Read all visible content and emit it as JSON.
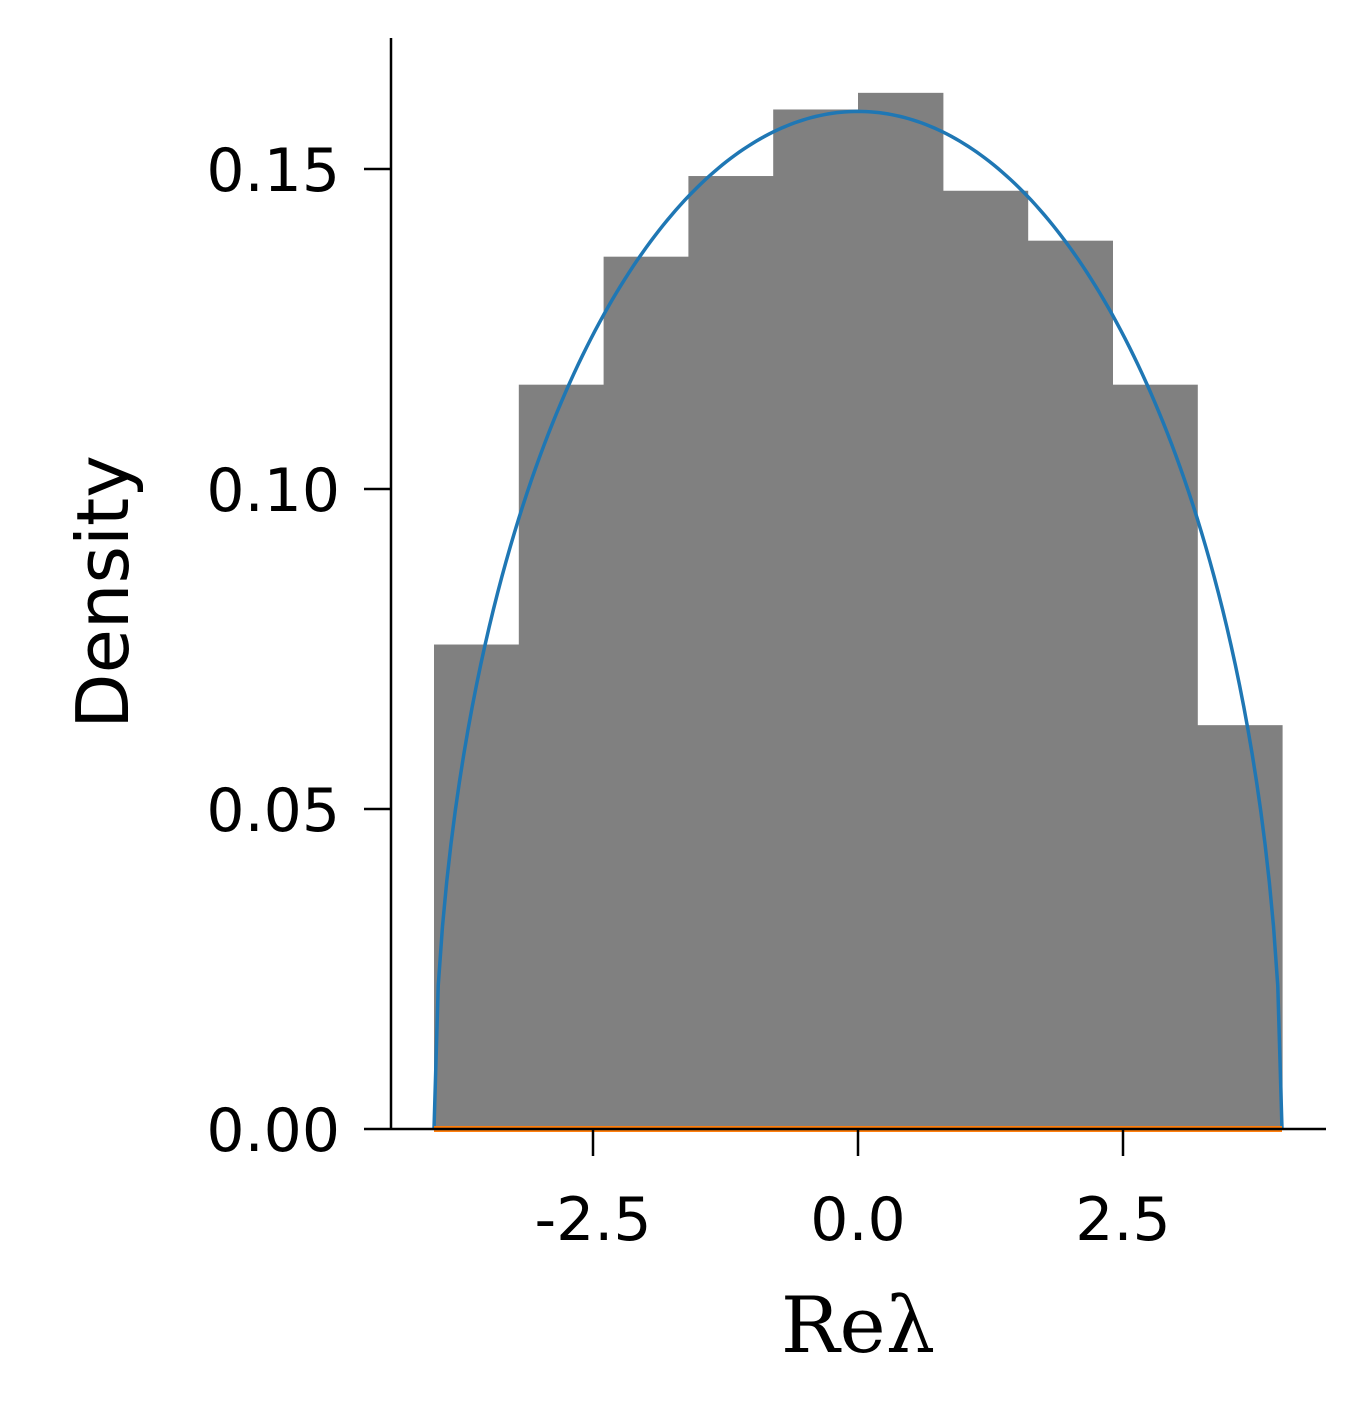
{
  "chart_data": {
    "type": "bar",
    "title": "",
    "xlabel": "Reλ",
    "ylabel": "Density",
    "xlim": [
      -5.5,
      5.0
    ],
    "ylim": [
      0,
      0.17
    ],
    "xticks": [
      "-2.5",
      "0.0",
      "2.5"
    ],
    "xtick_values": [
      -2.5,
      0.0,
      2.5
    ],
    "yticks": [
      "0.00",
      "0.05",
      "0.10",
      "0.15"
    ],
    "ytick_values": [
      0.0,
      0.05,
      0.1,
      0.15
    ],
    "grid": false,
    "histogram": {
      "color": "#808080",
      "bins": [
        {
          "x0": -4.0,
          "x1": -3.2,
          "value": 0.0757
        },
        {
          "x0": -3.2,
          "x1": -2.4,
          "value": 0.1163
        },
        {
          "x0": -2.4,
          "x1": -1.6,
          "value": 0.1363
        },
        {
          "x0": -1.6,
          "x1": -0.8,
          "value": 0.1489
        },
        {
          "x0": -0.8,
          "x1": 0.0,
          "value": 0.1593
        },
        {
          "x0": 0.0,
          "x1": 0.8,
          "value": 0.1619
        },
        {
          "x0": 0.8,
          "x1": 1.6,
          "value": 0.1466
        },
        {
          "x0": 1.6,
          "x1": 2.4,
          "value": 0.1388
        },
        {
          "x0": 2.4,
          "x1": 3.2,
          "value": 0.1163
        },
        {
          "x0": 3.2,
          "x1": 4.0,
          "value": 0.0631
        }
      ]
    },
    "curve": {
      "type": "line",
      "color": "#1f77b4",
      "shape": "semicircle",
      "center": 0.0,
      "radius": 4.0,
      "peak": 0.159
    },
    "baseline": {
      "type": "line",
      "color": "#ff7f0e",
      "x": [
        -4.0,
        4.0
      ],
      "y": [
        0,
        0
      ]
    }
  }
}
